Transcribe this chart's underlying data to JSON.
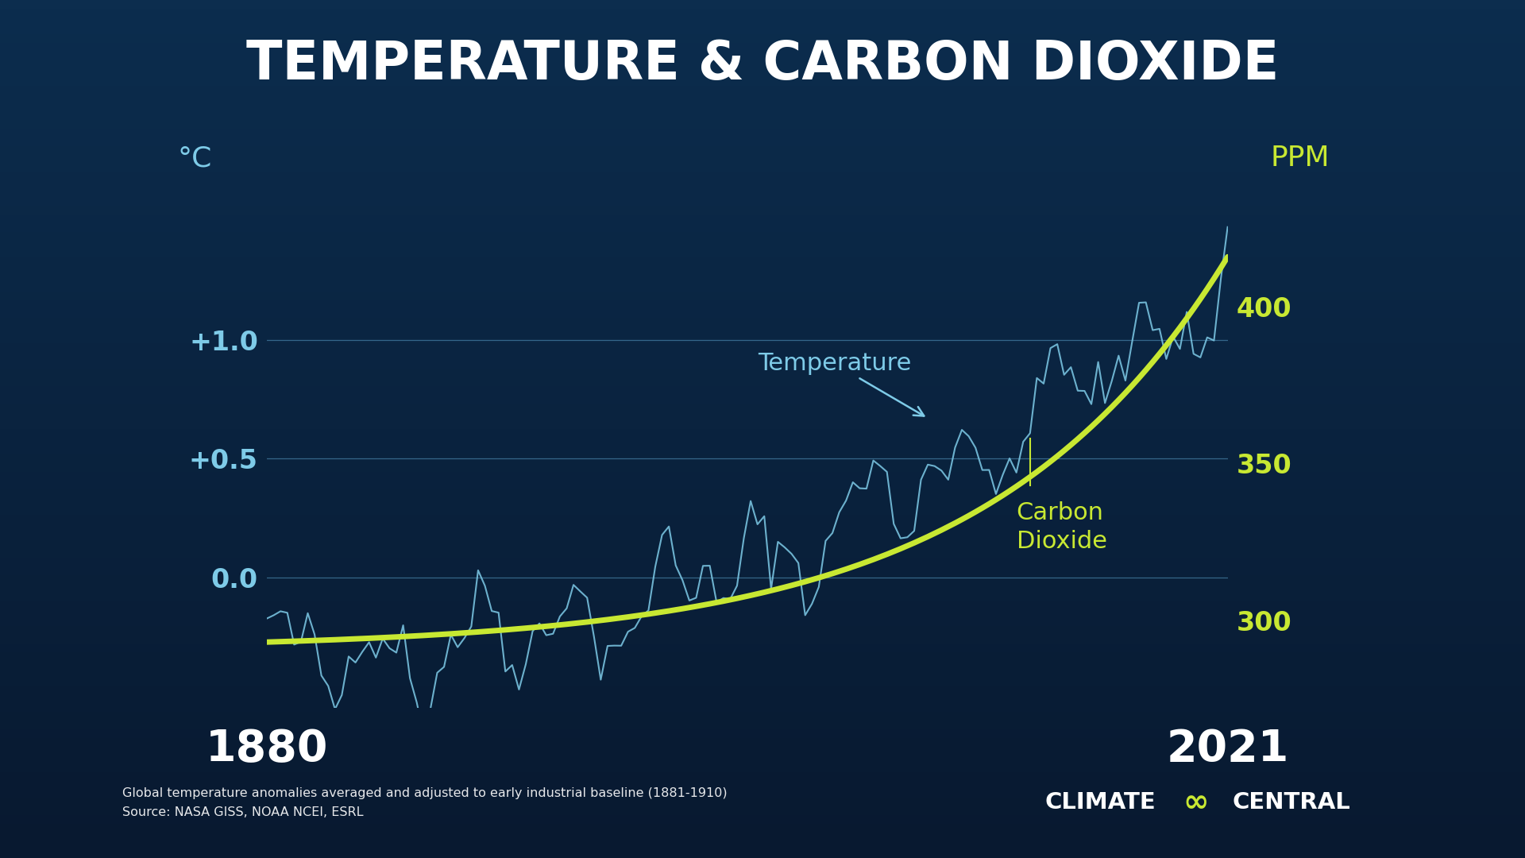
{
  "title": "TEMPERATURE & CARBON DIOXIDE",
  "title_color": "#FFFFFF",
  "title_fontsize": 48,
  "bg_color_top": "#0c2d4e",
  "bg_color_bottom": "#0a1f35",
  "temp_color": "#7ecbe8",
  "co2_color": "#c8e832",
  "grid_color": "#5a9fc8",
  "label_color_temp": "#7ecbe8",
  "label_color_co2": "#c8e832",
  "year_start": 1880,
  "year_end": 2021,
  "temp_ylim_min": -0.55,
  "temp_ylim_max": 1.6,
  "co2_ylim_min": 272,
  "co2_ylim_max": 435,
  "yticks_temp": [
    0.0,
    0.5,
    1.0
  ],
  "ytick_labels_temp": [
    "0.0",
    "+0.5",
    "+1.0"
  ],
  "yticks_co2": [
    300,
    350,
    400
  ],
  "ytick_labels_co2": [
    "300",
    "350",
    "400"
  ],
  "xlabel_1880": "1880",
  "xlabel_2021": "2021",
  "footnote_line1": "Global temperature anomalies averaged and adjusted to early industrial baseline (1881-1910)",
  "footnote_line2": "Source: NASA GISS, NOAA NCEI, ESRL",
  "temp_label": "Temperature",
  "co2_label": "Carbon\nDioxide",
  "left_axis_label": "°C",
  "right_axis_label": "PPM"
}
